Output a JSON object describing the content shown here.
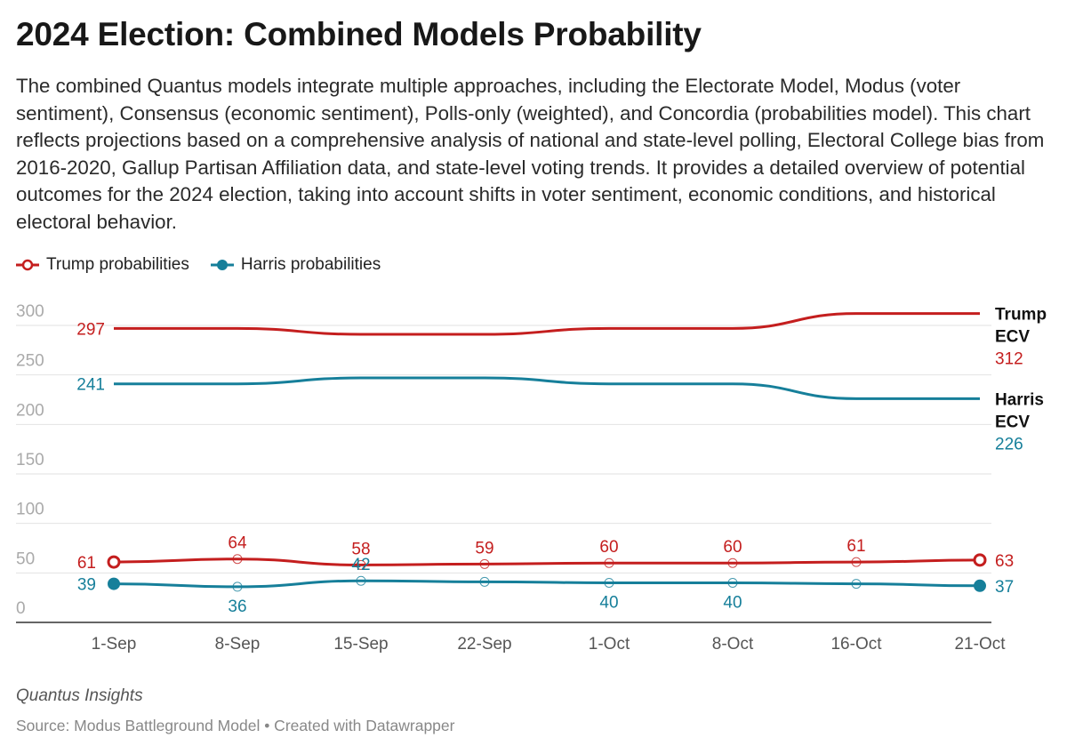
{
  "title": "2024 Election: Combined Models Probability",
  "subtitle": "The combined Quantus models integrate multiple approaches, including the Electorate Model, Modus (voter sentiment), Consensus (economic sentiment), Polls-only (weighted), and Concordia (probabilities model). This chart reflects projections based on a comprehensive analysis of national and state-level polling, Electoral College bias from 2016-2020, Gallup Partisan Affiliation data, and state-level voting trends. It provides a detailed overview of potential outcomes for the 2024 election, taking into account shifts in voter sentiment, economic conditions, and historical electoral behavior.",
  "notes": "Quantus Insights",
  "source": "Source: Modus Battleground Model • Created with Datawrapper",
  "colors": {
    "trump": "#c41e1e",
    "harris": "#167f9a",
    "grid": "#e2e2e2",
    "axis_text": "#aaaaaa"
  },
  "chart_data": {
    "type": "line",
    "categories": [
      "1-Sep",
      "8-Sep",
      "15-Sep",
      "22-Sep",
      "1-Oct",
      "8-Oct",
      "16-Oct",
      "21-Oct"
    ],
    "y_ticks": [
      0,
      50,
      100,
      150,
      200,
      250,
      300
    ],
    "ylim": [
      0,
      300
    ],
    "grid": true,
    "legend": "top-left",
    "series": [
      {
        "name": "Trump probabilities",
        "color": "#c41e1e",
        "marker": "circle",
        "values": [
          61,
          64,
          58,
          59,
          60,
          60,
          61,
          63
        ],
        "labels": [
          "61",
          "64",
          "58",
          "59",
          "60",
          "60",
          "61",
          "63"
        ],
        "label_pos": [
          "left",
          "above",
          "above",
          "above",
          "above",
          "above",
          "above",
          "right"
        ]
      },
      {
        "name": "Harris probabilities",
        "color": "#167f9a",
        "marker": "circle",
        "values": [
          39,
          36,
          42,
          41,
          40,
          40,
          39,
          37
        ],
        "labels": [
          "39",
          "36",
          "42",
          "",
          "40",
          "40",
          "",
          "37"
        ],
        "label_pos": [
          "left",
          "below",
          "above",
          "none",
          "below",
          "below",
          "none",
          "right"
        ]
      },
      {
        "name": "Trump ECV",
        "color": "#c41e1e",
        "values": [
          297,
          297,
          291,
          291,
          297,
          297,
          312,
          312
        ],
        "start_label": "297",
        "end_title_lines": [
          "Trump",
          "ECV"
        ],
        "end_value": "312"
      },
      {
        "name": "Harris ECV",
        "color": "#167f9a",
        "values": [
          241,
          241,
          247,
          247,
          241,
          241,
          226,
          226
        ],
        "start_label": "241",
        "end_title_lines": [
          "Harris",
          "ECV"
        ],
        "end_value": "226"
      }
    ]
  }
}
